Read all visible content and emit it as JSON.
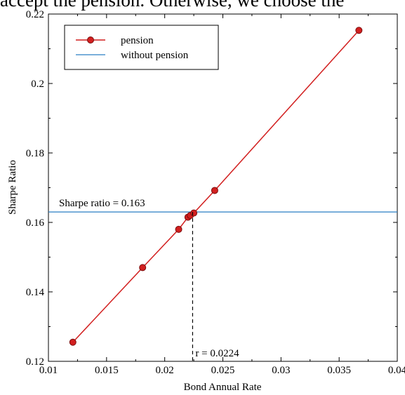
{
  "page": {
    "clipped_text": "accept the pension. Otherwise, we choose the"
  },
  "chart_data": {
    "type": "line",
    "xlabel": "Bond Annual Rate",
    "ylabel": "Sharpe Ratio",
    "xlim": [
      0.01,
      0.04
    ],
    "ylim": [
      0.12,
      0.22
    ],
    "x_ticks": [
      0.01,
      0.015,
      0.02,
      0.025,
      0.03,
      0.035,
      0.04
    ],
    "y_ticks": [
      0.12,
      0.14,
      0.16,
      0.18,
      0.2,
      0.22
    ],
    "x_tick_labels": [
      "0.01",
      "0.015",
      "0.02",
      "0.025",
      "0.03",
      "0.035",
      "0.04"
    ],
    "y_tick_labels": [
      "0.12",
      "0.14",
      "0.16",
      "0.18",
      "0.2",
      "0.22"
    ],
    "grid": false,
    "legend_position": "top-left",
    "series": [
      {
        "name": "pension",
        "color": "#d21f1f",
        "marker": "circle",
        "x": [
          0.0121,
          0.0181,
          0.0212,
          0.022,
          0.0222,
          0.0225,
          0.0243,
          0.0367
        ],
        "y": [
          0.1255,
          0.147,
          0.158,
          0.1615,
          0.162,
          0.1627,
          0.1692,
          0.2153
        ]
      },
      {
        "name": "without pension",
        "color": "#2a7fc4",
        "marker": "none",
        "type": "hline",
        "y": 0.163
      }
    ],
    "annotations": [
      {
        "text": "Sharpe ratio = 0.163"
      },
      {
        "text": "r = 0.0224",
        "x": 0.0224,
        "style": "dashed-vertical"
      }
    ]
  }
}
